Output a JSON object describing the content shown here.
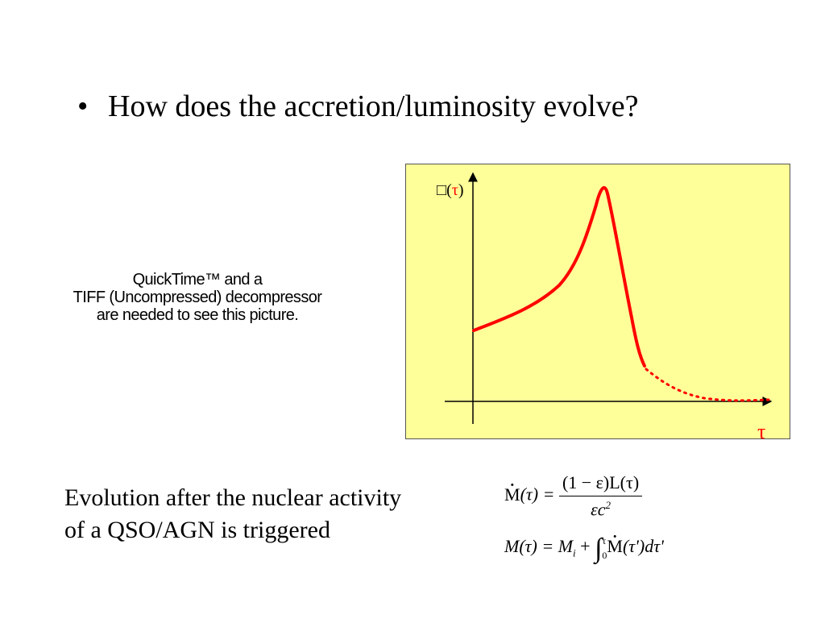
{
  "slide": {
    "bullet": "How does the accretion/luminosity evolve?",
    "placeholder_lines": [
      "QuickTime™ and a",
      "TIFF (Uncompressed) decompressor",
      "are needed to see this picture."
    ],
    "caption_lines": [
      "Evolution after the nuclear activity",
      "of a QSO/AGN is triggered"
    ]
  },
  "plot": {
    "y_label_box": "□",
    "y_label_paren_open": "(",
    "y_label_tau": "τ",
    "y_label_paren_close": ")",
    "x_label": "τ",
    "curve_color": "#ff0000",
    "background": "#ffff99"
  },
  "equations": {
    "eq1_lhs": "M",
    "eq1_arg": "(τ) =",
    "eq1_num": "(1 − ε)L(τ)",
    "eq1_den": "εc",
    "eq1_den_sup": "2",
    "eq2_lhs": "M(τ) = M",
    "eq2_sub": "i",
    "eq2_plus": "+",
    "eq2_integral": "∫",
    "eq2_upper": "τ",
    "eq2_lower": "0",
    "eq2_M": "M",
    "eq2_tail": "(τ')dτ'"
  }
}
